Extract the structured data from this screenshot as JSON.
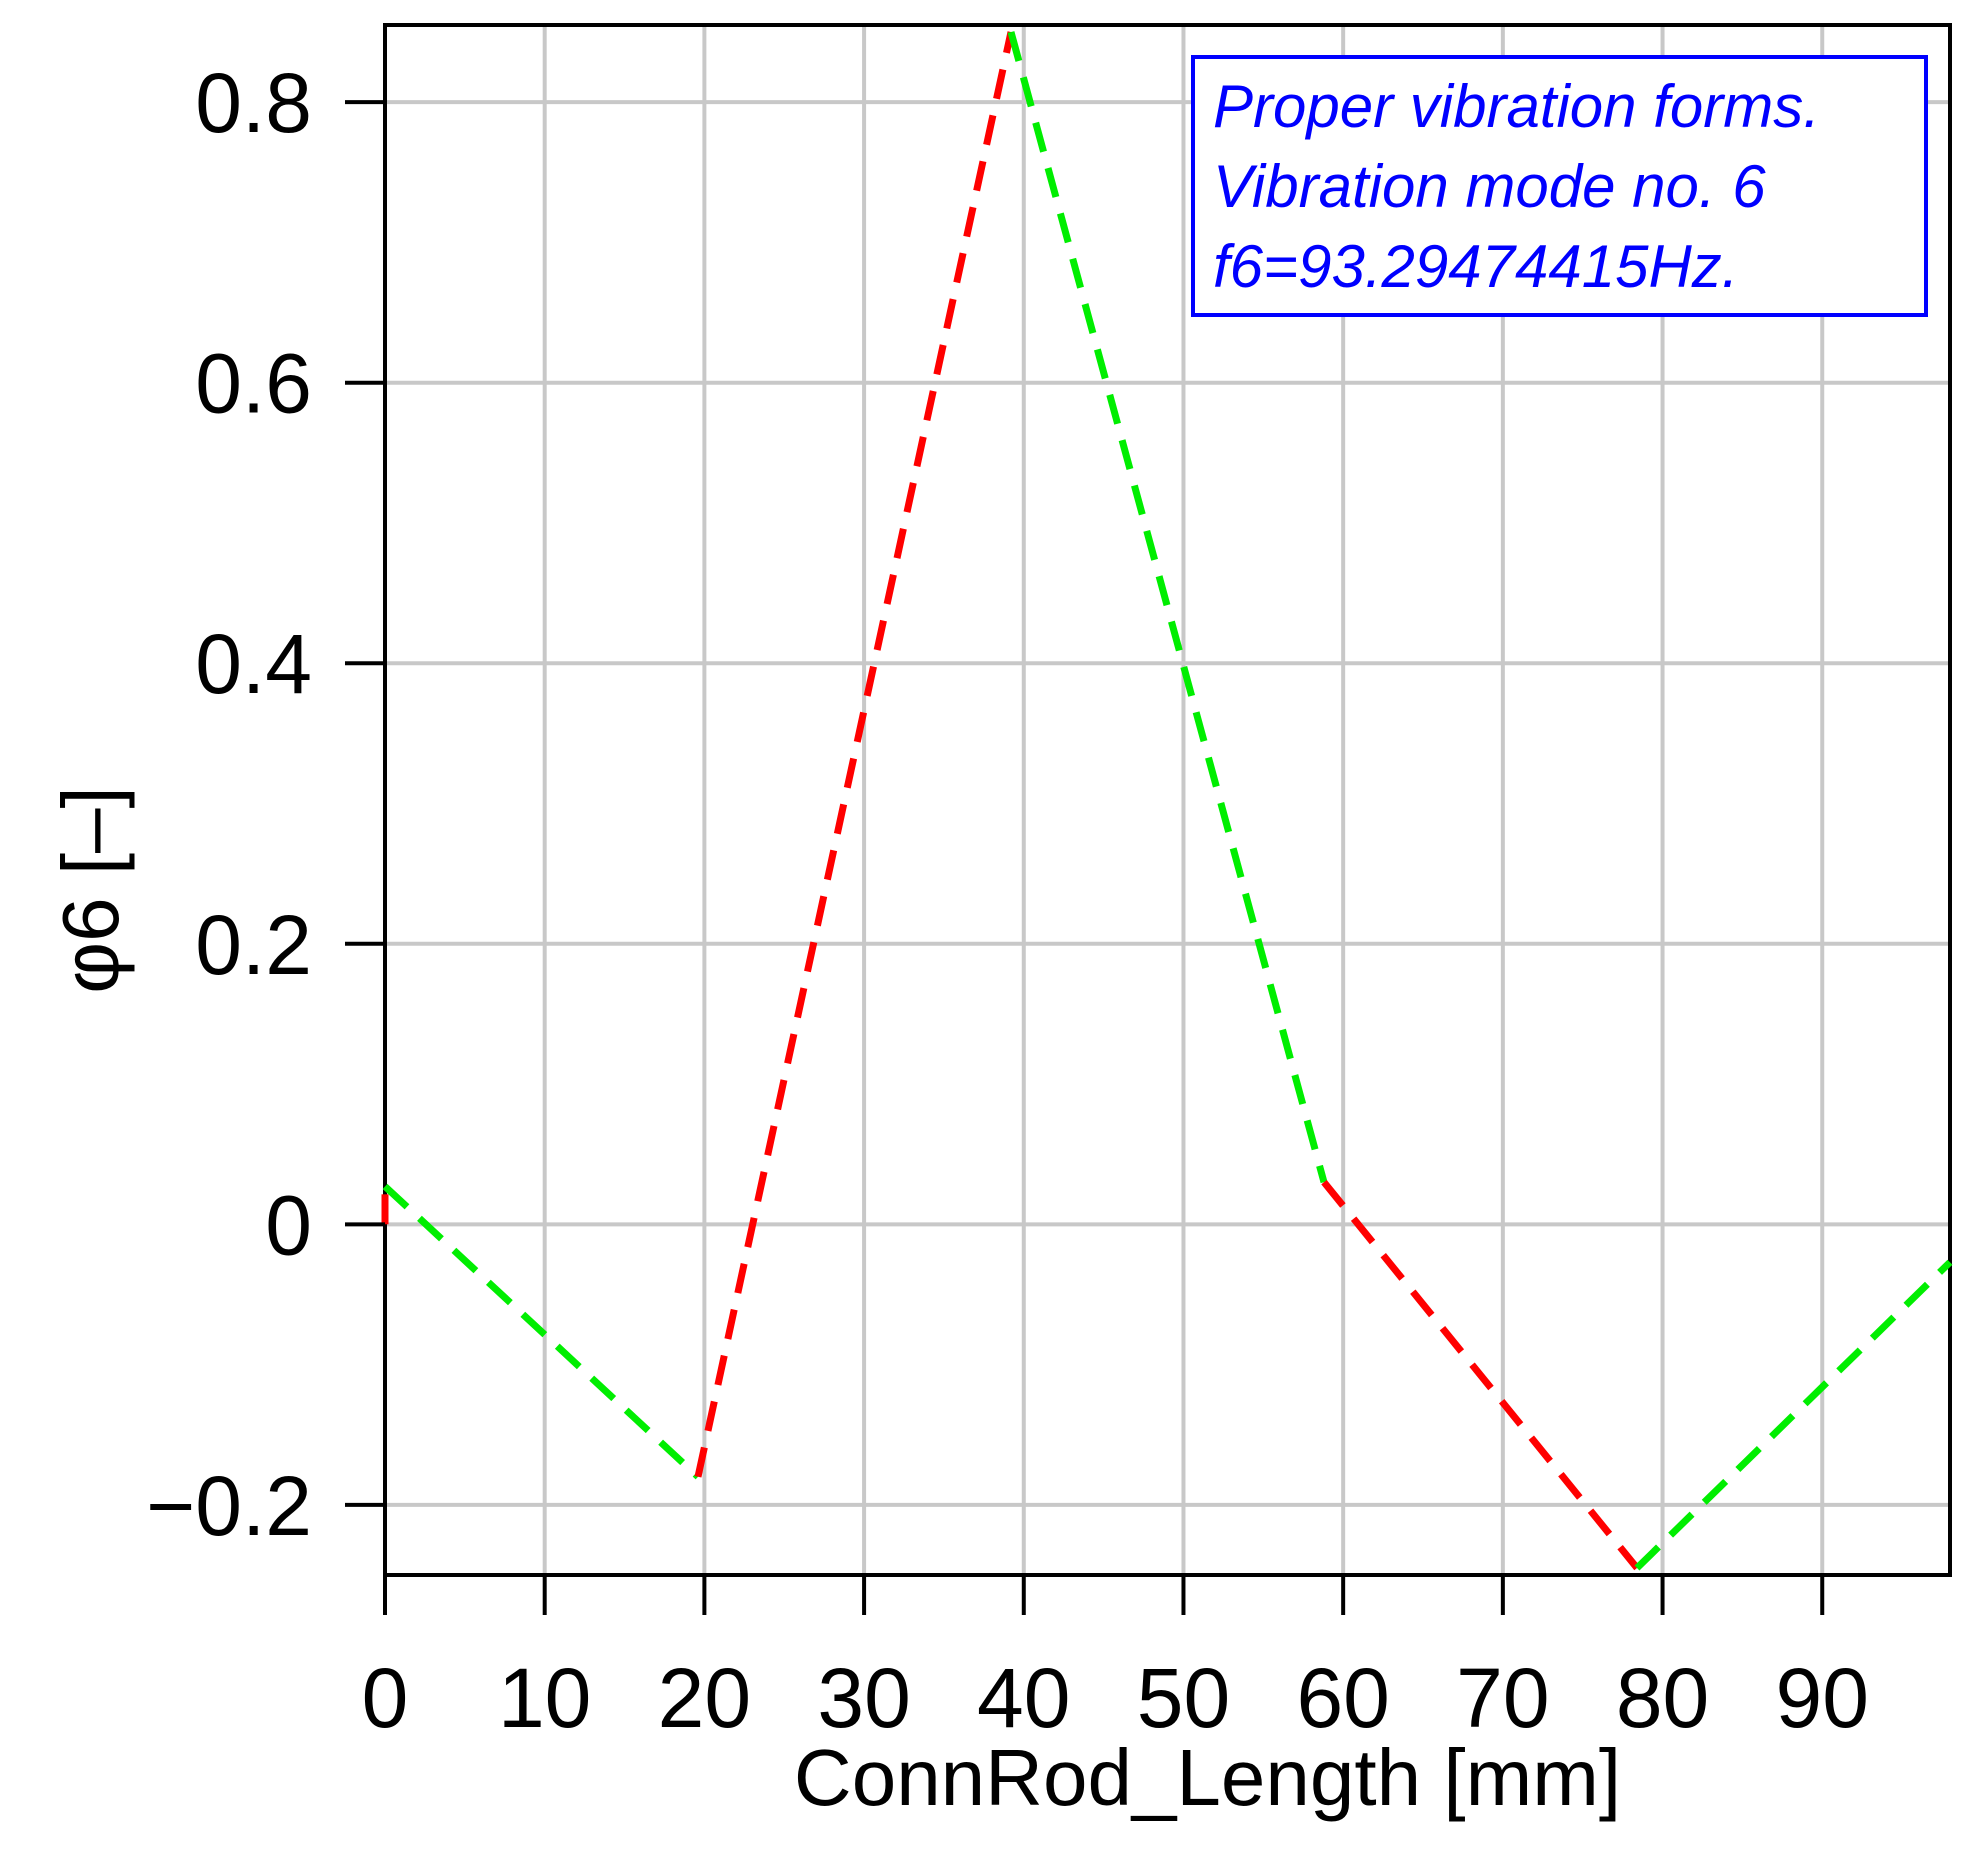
{
  "chart_data": {
    "type": "line",
    "xlabel": "ConnRod_Length [mm]",
    "ylabel": "φ6 [–]",
    "xlim": [
      0,
      98
    ],
    "ylim": [
      -0.25,
      0.855
    ],
    "x_ticks": [
      0,
      10,
      20,
      30,
      40,
      50,
      60,
      70,
      80,
      90
    ],
    "x_tick_labels": [
      "0",
      "10",
      "20",
      "30",
      "40",
      "50",
      "60",
      "70",
      "80",
      "90"
    ],
    "y_ticks": [
      -0.2,
      0,
      0.2,
      0.4,
      0.6,
      0.8
    ],
    "y_tick_labels": [
      "−0.2",
      "0",
      "0.2",
      "0.4",
      "0.6",
      "0.8"
    ],
    "grid": true,
    "legend_box": {
      "lines": [
        "Proper vibration forms.",
        "Vibration mode no. 6",
        "f6=93.29474415Hz."
      ],
      "placement": "top-right",
      "color": "#0000ff"
    },
    "series": [
      {
        "color": "#ff0000",
        "dash": true,
        "points": [
          [
            0.0,
            0.0
          ],
          [
            0.0,
            0.027
          ]
        ]
      },
      {
        "color": "#00ee00",
        "dash": true,
        "points": [
          [
            0.0,
            0.027
          ],
          [
            19.6,
            -0.18
          ]
        ]
      },
      {
        "color": "#ff0000",
        "dash": true,
        "points": [
          [
            19.6,
            -0.18
          ],
          [
            39.2,
            0.85
          ]
        ]
      },
      {
        "color": "#00ee00",
        "dash": true,
        "points": [
          [
            39.2,
            0.85
          ],
          [
            58.8,
            0.03
          ]
        ]
      },
      {
        "color": "#ff0000",
        "dash": true,
        "points": [
          [
            58.8,
            0.03
          ],
          [
            78.4,
            -0.245
          ]
        ]
      },
      {
        "color": "#00ee00",
        "dash": true,
        "points": [
          [
            78.4,
            -0.245
          ],
          [
            98.0,
            -0.027
          ]
        ]
      }
    ]
  }
}
